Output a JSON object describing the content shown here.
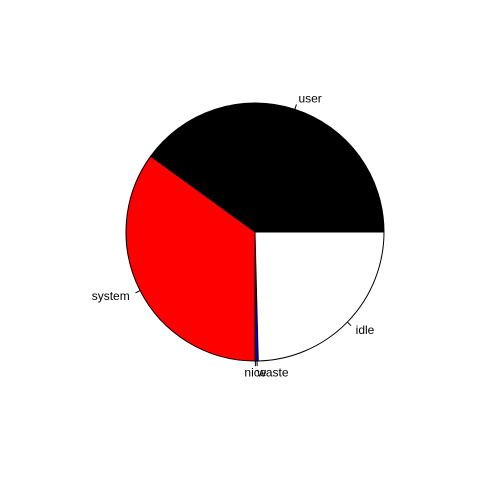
{
  "chart_data": {
    "type": "pie",
    "slices": [
      {
        "label": "user",
        "value": 40.0,
        "color": "#000000"
      },
      {
        "label": "system",
        "value": 35.0,
        "color": "#FF0000"
      },
      {
        "label": "nice",
        "value": 0.1,
        "color": "#00CD00"
      },
      {
        "label": "waste",
        "value": 0.3,
        "color": "#0000FF"
      },
      {
        "label": "idle",
        "value": 24.6,
        "color": "#FFFFFF"
      }
    ],
    "start_angle_deg": 0,
    "direction": "counterclockwise",
    "border_color": "#000000",
    "legend": "none",
    "title": ""
  }
}
